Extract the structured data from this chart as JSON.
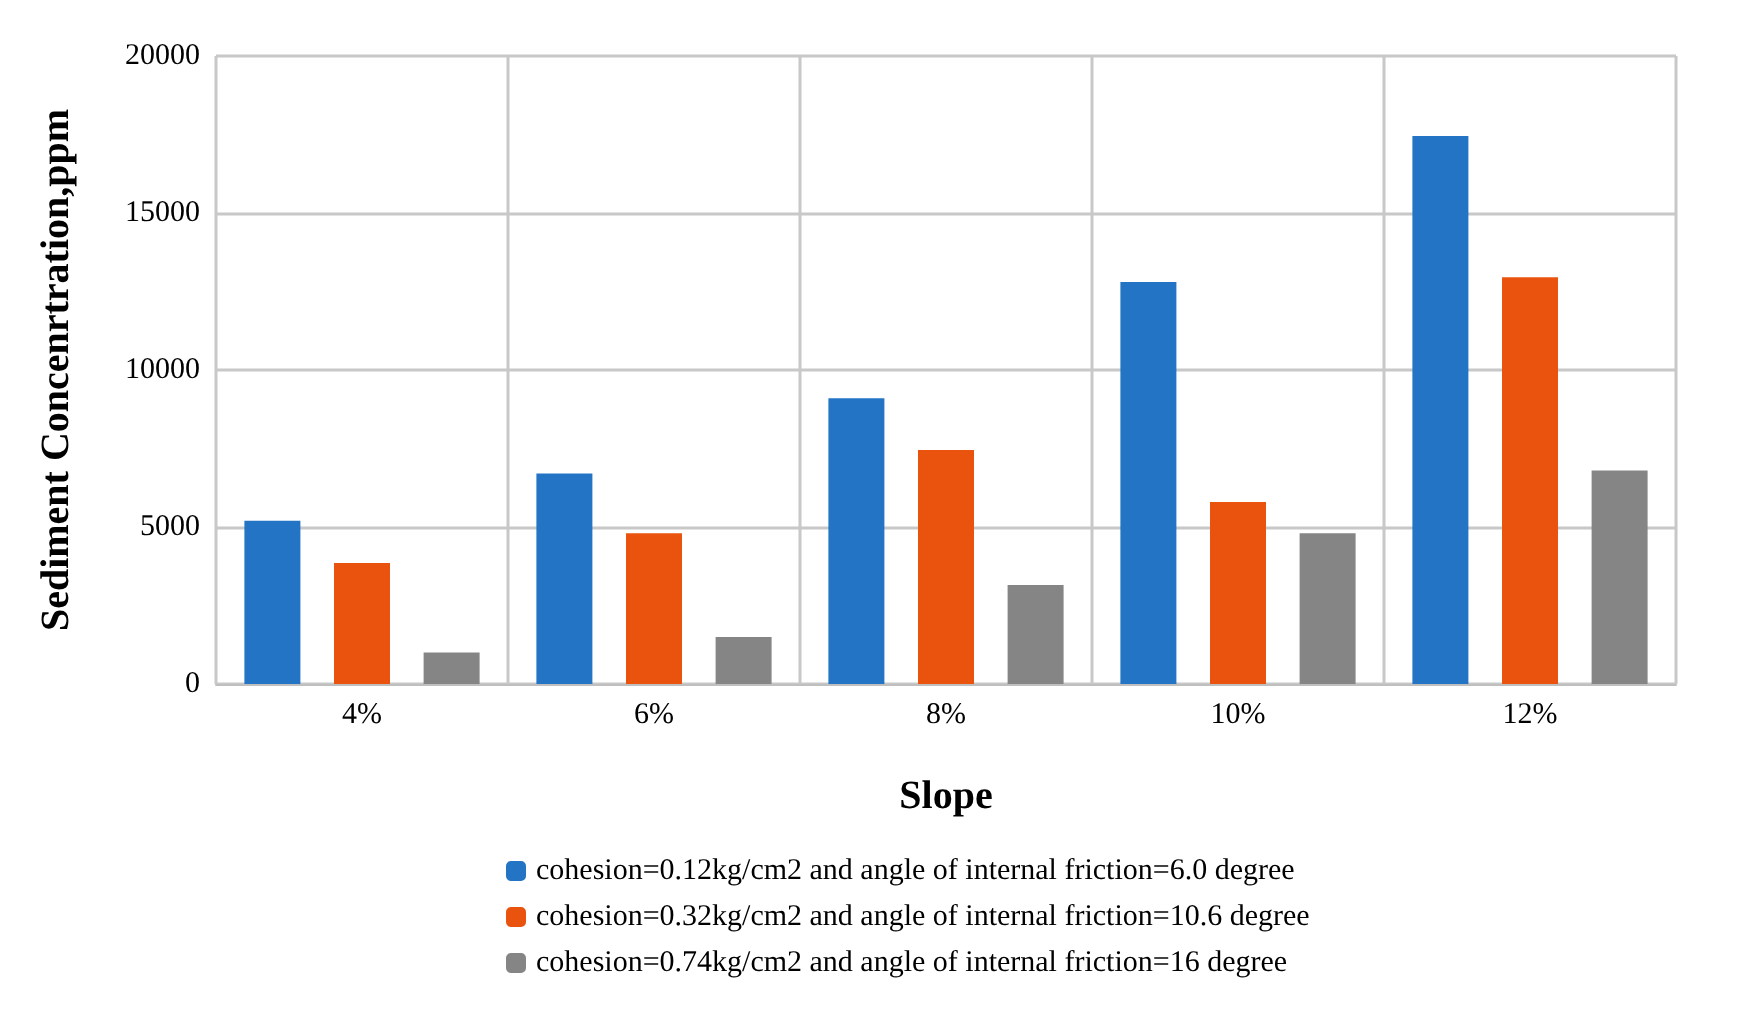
{
  "chart_data": {
    "type": "bar",
    "xlabel": "Slope",
    "ylabel": "Sediment Concenrtration,ppm",
    "categories": [
      "4%",
      "6%",
      "8%",
      "10%",
      "12%"
    ],
    "series": [
      {
        "name": "cohesion=0.12kg/cm2 and angle of internal friction=6.0 degree",
        "color": "#2474c6",
        "values": [
          5200,
          6700,
          9100,
          12800,
          17450
        ]
      },
      {
        "name": "cohesion=0.32kg/cm2 and angle of internal friction=10.6 degree",
        "color": "#e9530e",
        "values": [
          3850,
          4800,
          7450,
          5800,
          12950
        ]
      },
      {
        "name": "cohesion=0.74kg/cm2 and angle of internal friction=16 degree",
        "color": "#858585",
        "values": [
          1000,
          1500,
          3150,
          4800,
          6800
        ]
      }
    ],
    "ylim": [
      0,
      20000
    ],
    "yticks": [
      0,
      5000,
      10000,
      15000,
      20000
    ],
    "grid": true,
    "legend": "bottom"
  }
}
